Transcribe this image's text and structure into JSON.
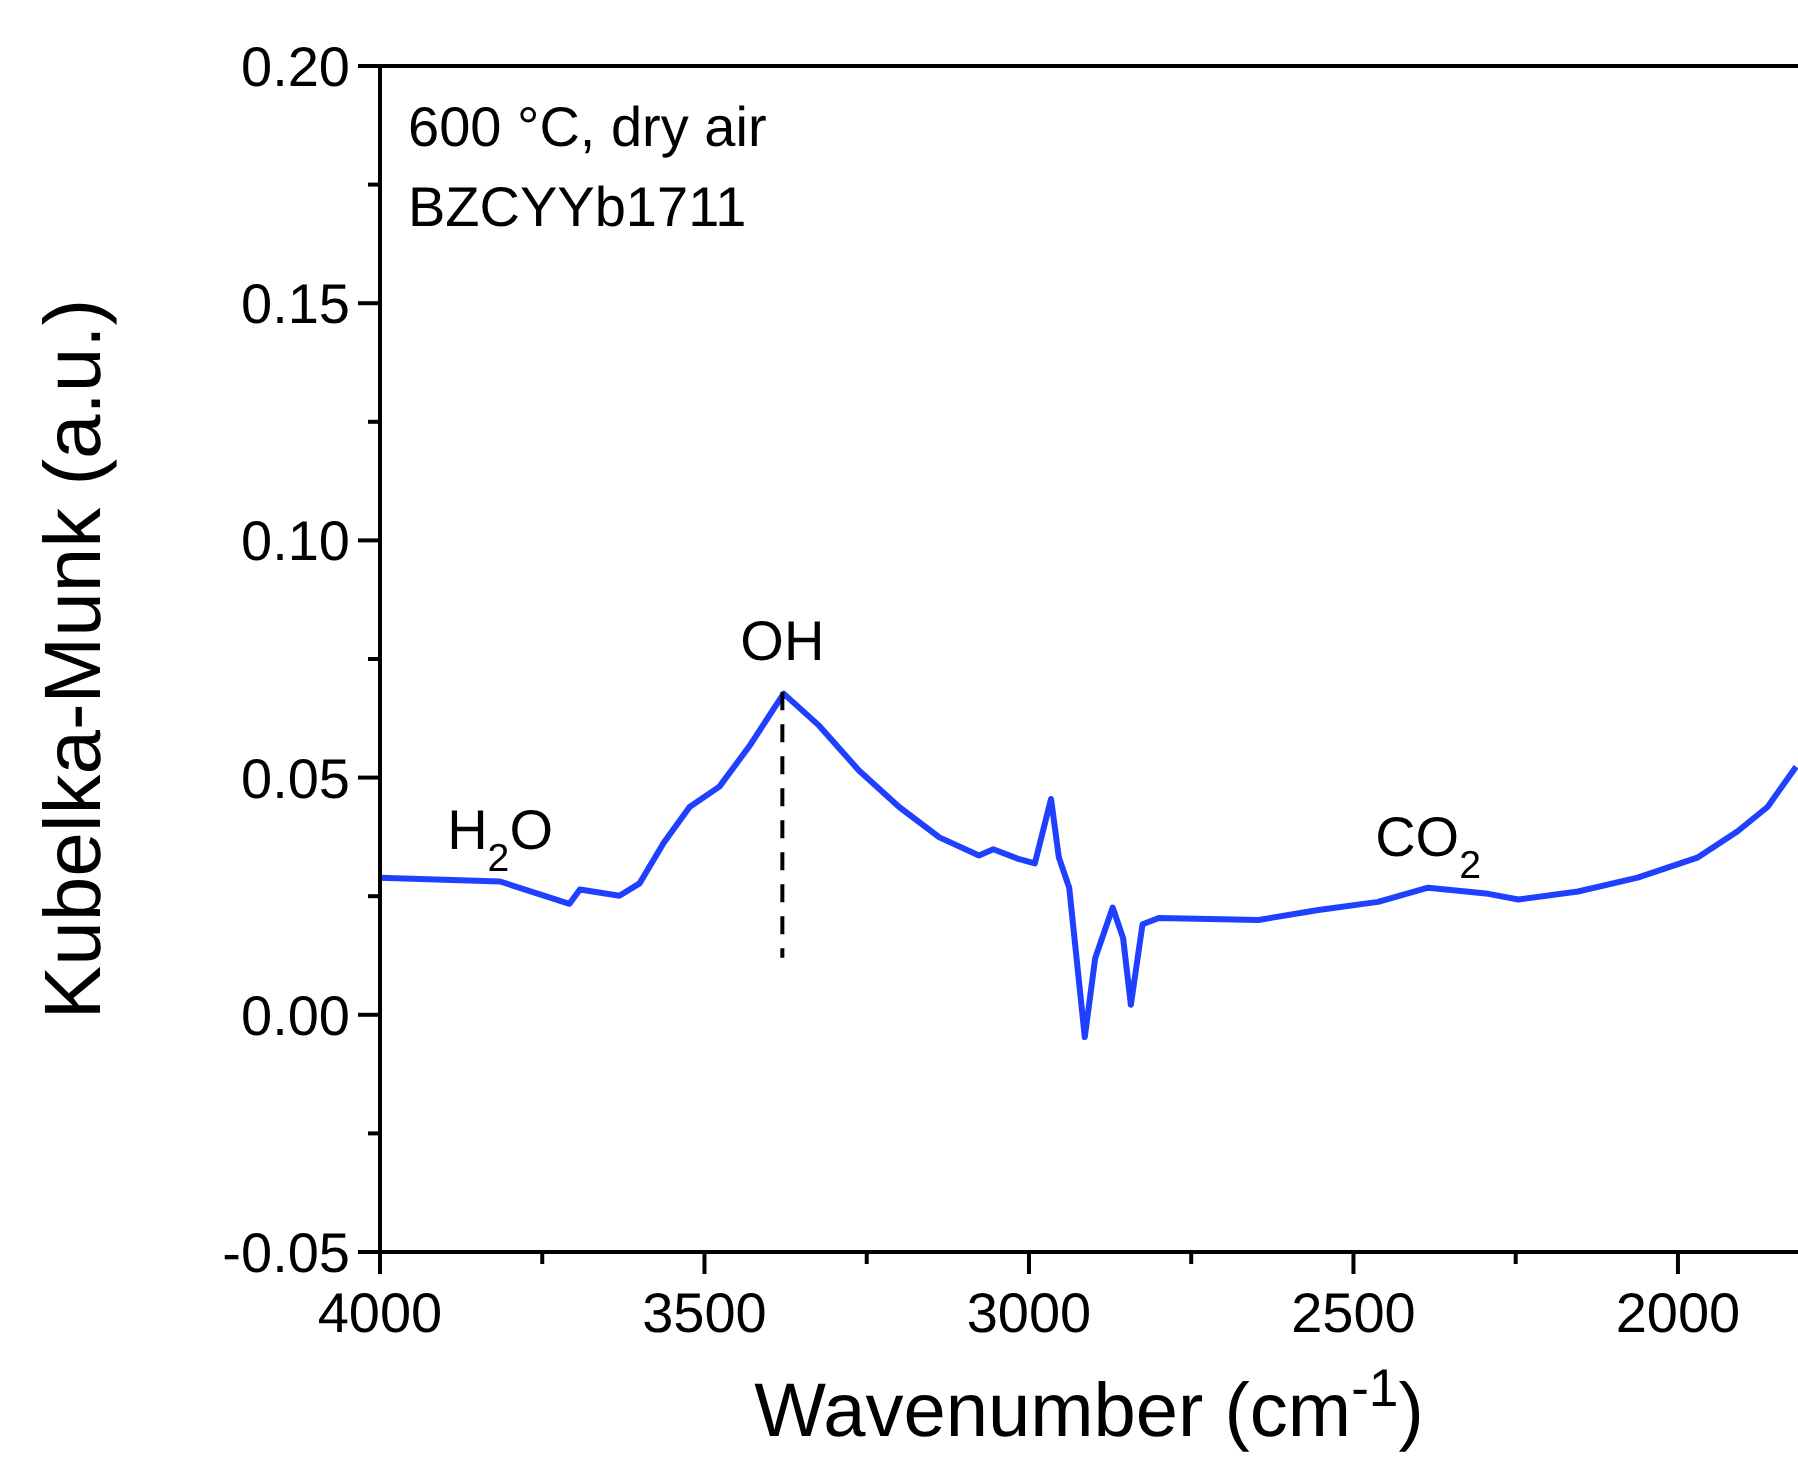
{
  "chart_data": {
    "type": "line",
    "xlabel": "Wavenumber (cm$^{-1}$)",
    "ylabel": "Kubelka-Munk (a.u.)",
    "xlim": [
      4000,
      1815
    ],
    "ylim": [
      -0.05,
      0.2
    ],
    "xticks": [
      4000,
      {
        "value": 3750,
        "label": null
      },
      3500,
      {
        "value": 3250,
        "label": null
      },
      3000,
      {
        "value": 2750,
        "label": null
      },
      2500,
      {
        "value": 2250,
        "label": null
      },
      2000
    ],
    "yticks": [
      -0.05,
      {
        "value": -0.025,
        "label": null
      },
      "0.00",
      {
        "value": 0.025,
        "label": null
      },
      0.05,
      {
        "value": 0.075,
        "label": null
      },
      {
        "value": 0.1,
        "label": "0.10"
      },
      {
        "value": 0.125,
        "label": null
      },
      0.15,
      {
        "value": 0.175,
        "label": null
      },
      {
        "value": 0.2,
        "label": "0.20"
      }
    ],
    "series": [
      {
        "color": "#2040ff",
        "line_style": "solid",
        "x": [
          4000,
          3815,
          3708,
          3692,
          3631,
          3600,
          3563,
          3523,
          3477,
          3431,
          3378,
          3323,
          3262,
          3200,
          3138,
          3077,
          3055,
          3015,
          2991,
          2966,
          2954,
          2938,
          2914,
          2898,
          2871,
          2855,
          2843,
          2825,
          2800,
          2646,
          2554,
          2462,
          2385,
          2292,
          2246,
          2154,
          2062,
          1969,
          1908,
          1862,
          1818
        ],
        "values": [
          0.0289,
          0.0281,
          0.0234,
          0.0264,
          0.0251,
          0.0277,
          0.0362,
          0.0438,
          0.0481,
          0.0566,
          0.0677,
          0.0609,
          0.0515,
          0.0438,
          0.0374,
          0.0336,
          0.0349,
          0.0328,
          0.0319,
          0.0455,
          0.0332,
          0.0268,
          -0.0047,
          0.0119,
          0.0226,
          0.0162,
          0.0021,
          0.0191,
          0.0204,
          0.02,
          0.0221,
          0.0238,
          0.0268,
          0.0255,
          0.0243,
          0.026,
          0.0289,
          0.0332,
          0.0387,
          0.0438,
          0.0523
        ]
      },
      {
        "color": "#000000",
        "line_style": "dashed",
        "x": [
          3380,
          3380
        ],
        "values": [
          0.068,
          0.012
        ]
      }
    ],
    "annotations": [
      "600 °C, dry air",
      "BZCYYb1711",
      {
        "text": "OH",
        "x": 3380,
        "y": 0.068
      },
      {
        "text": "H$_{2}$O",
        "x": 3815,
        "y": 0.0281
      },
      {
        "text": "CO$_{2}$",
        "x": 2385,
        "y": 0.0268
      }
    ]
  }
}
